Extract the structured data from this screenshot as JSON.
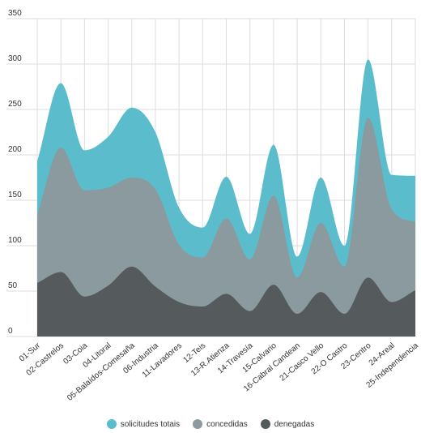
{
  "chart_data": {
    "type": "area",
    "categories": [
      "01-Sur",
      "02-Castrelos",
      "03-Coia",
      "04-Litoral",
      "05-Balaídos-Comesaña",
      "06-Industria",
      "11-Lavadores",
      "12-Teis",
      "13-R.Atienza",
      "14-Travesía",
      "15-Calvario",
      "16-Cabral Candean",
      "21-Casco Vello",
      "22-O Castro",
      "23-Centro",
      "24-Areal",
      "25-Independencia"
    ],
    "ylim": [
      0,
      350
    ],
    "yticks": [
      0,
      50,
      100,
      150,
      200,
      250,
      300,
      350
    ],
    "grid": true,
    "legend_position": "bottom",
    "series": [
      {
        "name": "solicitudes totais",
        "color": "#5bbccc",
        "values": [
          193,
          279,
          205,
          220,
          252,
          225,
          142,
          120,
          176,
          113,
          211,
          88,
          175,
          100,
          305,
          178,
          177
        ]
      },
      {
        "name": "concedidas",
        "color": "#8a9a9e",
        "values": [
          134,
          208,
          161,
          164,
          175,
          162,
          101,
          87,
          130,
          85,
          155,
          65,
          125,
          77,
          241,
          140,
          126
        ]
      },
      {
        "name": "denegadas",
        "color": "#555a5c",
        "values": [
          59,
          71,
          44,
          56,
          77,
          55,
          38,
          33,
          47,
          28,
          57,
          25,
          49,
          25,
          65,
          38,
          51
        ]
      }
    ]
  }
}
